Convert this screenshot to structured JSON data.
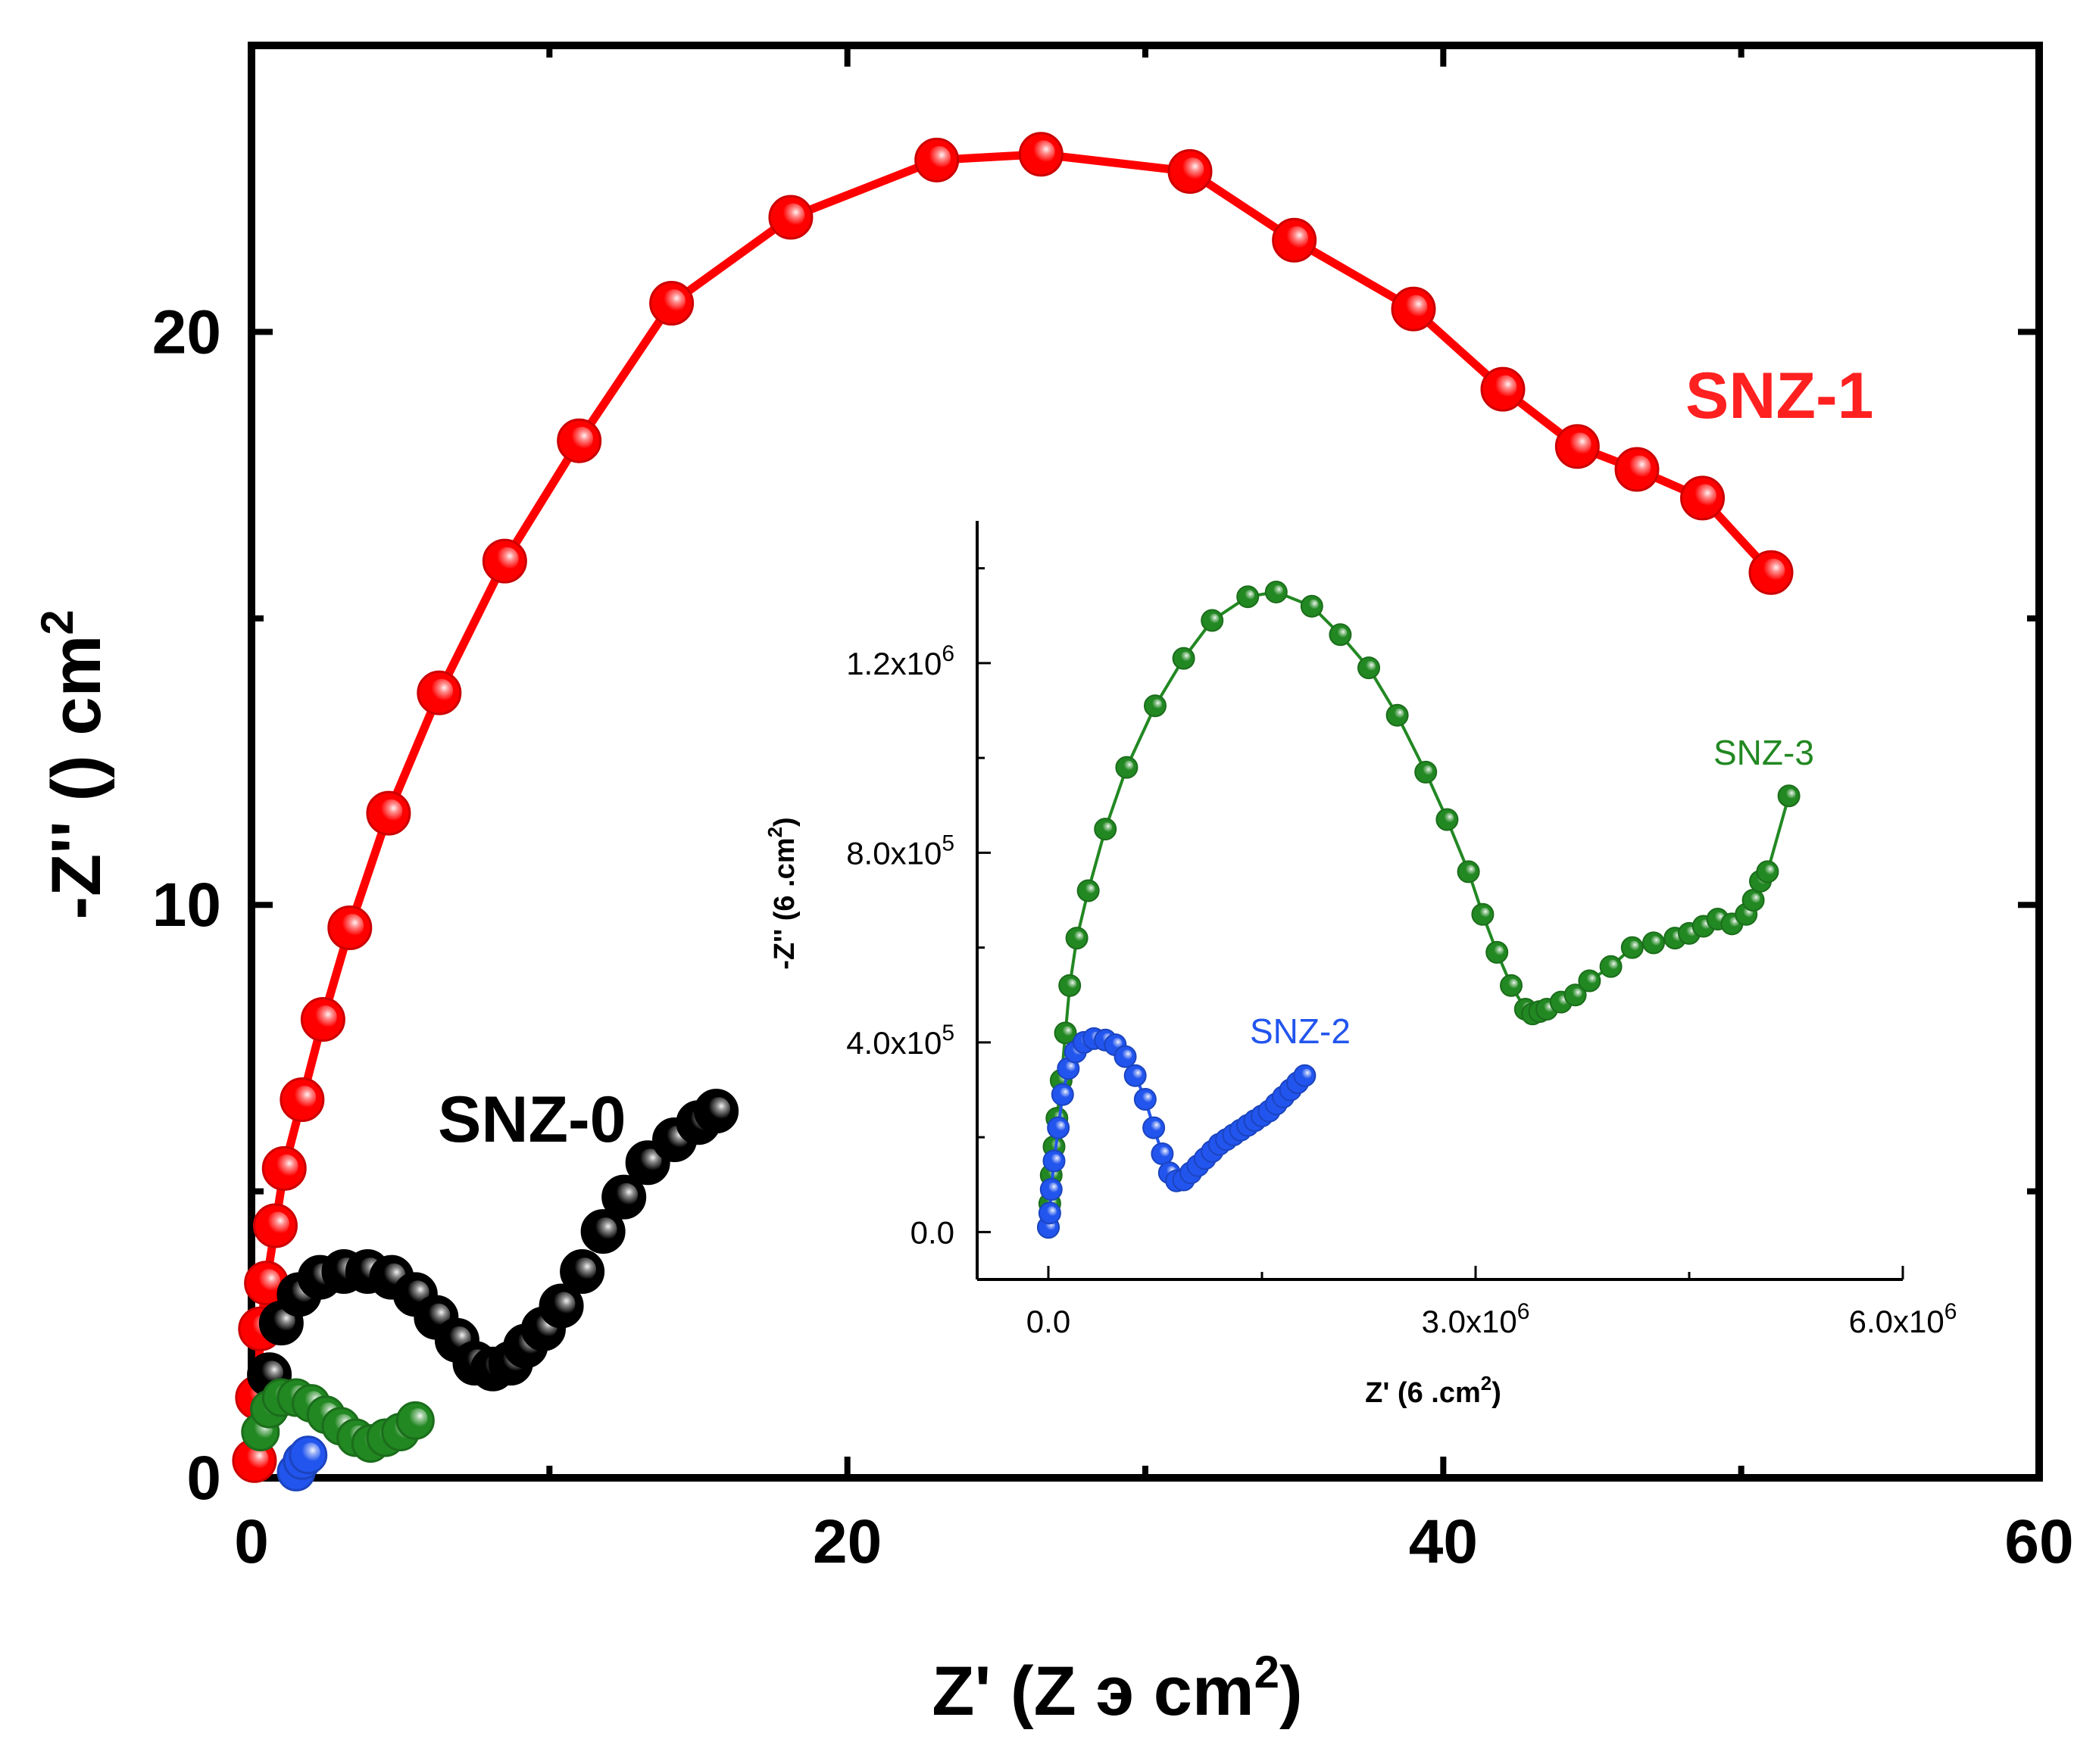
{
  "chart_data": [
    {
      "type": "scatter",
      "xlabel": {
        "main": "Z' (Z э  cm",
        "sup": "2",
        "close": ")"
      },
      "ylabel": {
        "main": "-Z'' ()     cm",
        "sup": "2"
      },
      "xlim": [
        0,
        60
      ],
      "ylim": [
        0,
        25
      ],
      "xticks": [
        0,
        20,
        40,
        60
      ],
      "xtick_labels": [
        "0",
        "20",
        "40",
        "60"
      ],
      "yticks": [
        0,
        10,
        20
      ],
      "ytick_labels": [
        "0",
        "10",
        "20"
      ],
      "grid": false,
      "series": [
        {
          "name": "SNZ-1",
          "color": "#ff0000",
          "x": [
            0.1,
            0.2,
            0.3,
            0.5,
            0.8,
            1.1,
            1.7,
            2.4,
            3.3,
            4.6,
            6.3,
            8.5,
            11.0,
            14.1,
            18.1,
            23.0,
            26.5,
            31.5,
            35.0,
            39.0,
            42.0,
            44.5,
            46.5,
            48.7,
            51.0
          ],
          "y": [
            0.3,
            1.4,
            2.6,
            3.4,
            4.4,
            5.4,
            6.6,
            8.0,
            9.6,
            11.6,
            13.7,
            16.0,
            18.1,
            20.5,
            22.0,
            23.0,
            23.1,
            22.8,
            21.6,
            20.4,
            19.0,
            18.0,
            17.6,
            17.1,
            15.8
          ]
        },
        {
          "name": "SNZ-0",
          "color": "#000000",
          "x": [
            0.6,
            1.0,
            1.6,
            2.3,
            3.1,
            3.9,
            4.7,
            5.5,
            6.2,
            6.9,
            7.5,
            8.1,
            8.7,
            9.2,
            9.8,
            10.4,
            11.1,
            11.8,
            12.5,
            13.3,
            14.2,
            15.0,
            15.6
          ],
          "y": [
            1.8,
            2.7,
            3.2,
            3.5,
            3.6,
            3.6,
            3.5,
            3.2,
            2.8,
            2.4,
            2.0,
            1.9,
            2.0,
            2.3,
            2.6,
            3.0,
            3.6,
            4.3,
            4.9,
            5.5,
            5.9,
            6.2,
            6.4
          ]
        },
        {
          "name": "SNZ-3",
          "color": "#228822",
          "x": [
            0.3,
            0.6,
            1.0,
            1.5,
            2.0,
            2.5,
            3.0,
            3.5,
            4.0,
            4.5,
            5.0,
            5.5
          ],
          "y": [
            0.8,
            1.2,
            1.4,
            1.4,
            1.3,
            1.1,
            0.9,
            0.7,
            0.6,
            0.7,
            0.8,
            1.0
          ]
        },
        {
          "name": "SNZ-2",
          "color": "#2255ee",
          "x": [
            1.5,
            1.7,
            1.9
          ],
          "y": [
            0.1,
            0.3,
            0.4
          ]
        }
      ],
      "annotations": [
        "SNZ-1",
        "SNZ-0"
      ]
    },
    {
      "type": "line",
      "xlabel": {
        "main": "Z' (6 .cm",
        "sup": "2",
        "close": ")"
      },
      "ylabel": {
        "main": "-Z'' (6 .cm",
        "sup": "2",
        "close": ")"
      },
      "xlim": [
        -500000,
        6000000
      ],
      "ylim": [
        -100000,
        1500000
      ],
      "xticks": [
        0,
        3000000,
        6000000
      ],
      "xtick_labels": [
        {
          "text": "0.0"
        },
        {
          "text": "3.0x10",
          "sup": "6"
        },
        {
          "text": "6.0x10",
          "sup": "6"
        }
      ],
      "yticks": [
        0,
        400000,
        800000,
        1200000
      ],
      "ytick_labels": [
        {
          "text": "0.0"
        },
        {
          "text": "4.0x10",
          "sup": "5"
        },
        {
          "text": "8.0x10",
          "sup": "5"
        },
        {
          "text": "1.2x10",
          "sup": "6"
        }
      ],
      "grid": false,
      "series": [
        {
          "name": "SNZ-3",
          "color": "#228822",
          "x": [
            0,
            10000,
            20000,
            40000,
            60000,
            90000,
            120000,
            150000,
            200000,
            280000,
            400000,
            550000,
            750000,
            950000,
            1150000,
            1400000,
            1600000,
            1850000,
            2050000,
            2250000,
            2450000,
            2650000,
            2800000,
            2950000,
            3050000,
            3150000,
            3250000,
            3350000,
            3400000,
            3450000,
            3500000,
            3600000,
            3700000,
            3800000,
            3950000,
            4100000,
            4250000,
            4400000,
            4500000,
            4600000,
            4700000,
            4800000,
            4900000,
            4950000,
            5000000,
            5050000,
            5200000
          ],
          "y": [
            10000,
            60000,
            120000,
            180000,
            240000,
            320000,
            420000,
            520000,
            620000,
            720000,
            850000,
            980000,
            1110000,
            1210000,
            1290000,
            1340000,
            1350000,
            1320000,
            1260000,
            1190000,
            1090000,
            970000,
            870000,
            760000,
            670000,
            590000,
            520000,
            470000,
            460000,
            465000,
            470000,
            485000,
            500000,
            530000,
            560000,
            600000,
            610000,
            620000,
            630000,
            645000,
            660000,
            650000,
            670000,
            700000,
            740000,
            760000,
            920000
          ]
        },
        {
          "name": "SNZ-2",
          "color": "#2255ee",
          "x": [
            0,
            10000,
            20000,
            40000,
            70000,
            100000,
            140000,
            190000,
            250000,
            320000,
            400000,
            470000,
            540000,
            610000,
            680000,
            740000,
            800000,
            850000,
            900000,
            950000,
            1000000,
            1050000,
            1100000,
            1150000,
            1200000,
            1250000,
            1300000,
            1350000,
            1400000,
            1450000,
            1500000,
            1550000,
            1600000,
            1650000,
            1700000,
            1750000,
            1800000
          ],
          "y": [
            10000,
            40000,
            90000,
            150000,
            220000,
            290000,
            345000,
            380000,
            400000,
            408000,
            405000,
            395000,
            370000,
            330000,
            280000,
            220000,
            165000,
            125000,
            108000,
            110000,
            125000,
            140000,
            155000,
            170000,
            185000,
            195000,
            205000,
            215000,
            225000,
            235000,
            245000,
            255000,
            270000,
            285000,
            300000,
            315000,
            330000
          ]
        }
      ],
      "annotations": [
        "SNZ-3",
        "SNZ-2"
      ]
    }
  ]
}
